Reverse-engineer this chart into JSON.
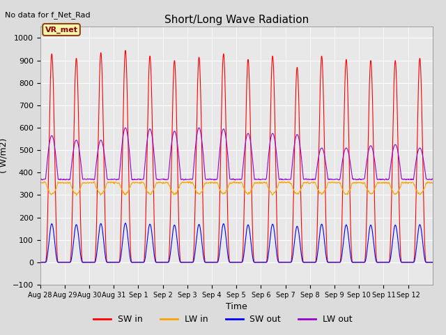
{
  "title": "Short/Long Wave Radiation",
  "xlabel": "Time",
  "ylabel": "( W/m2)",
  "ylim": [
    -100,
    1050
  ],
  "num_days": 16,
  "sw_in_color": "red",
  "lw_in_color": "orange",
  "sw_out_color": "blue",
  "lw_out_color": "#9900cc",
  "vr_met_label": "VR_met",
  "no_data_label": "No data for f_Net_Rad",
  "x_tick_labels": [
    "Aug 28",
    "Aug 29",
    "Aug 30",
    "Aug 31",
    "Sep 1",
    "Sep 2",
    "Sep 3",
    "Sep 4",
    "Sep 5",
    "Sep 6",
    "Sep 7",
    "Sep 8",
    "Sep 9",
    "Sep 10",
    "Sep 11",
    "Sep 12"
  ],
  "legend_entries": [
    "SW in",
    "LW in",
    "SW out",
    "LW out"
  ],
  "legend_colors": [
    "red",
    "orange",
    "blue",
    "#9900cc"
  ],
  "fig_bg": "#dcdcdc",
  "ax_bg": "#e8e8e8"
}
